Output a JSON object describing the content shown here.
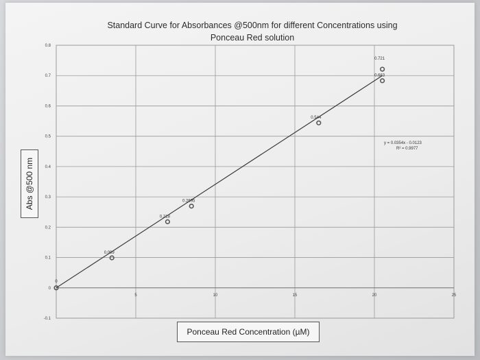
{
  "chart_data": {
    "type": "scatter",
    "title_line1": "Standard Curve for Absorbances @500nm for different Concentrations using",
    "title_line2": "Ponceau Red solution",
    "xlabel": "Ponceau Red Concentration (µM)",
    "ylabel": "Abs @500 nm",
    "xlim": [
      0,
      25
    ],
    "ylim": [
      -0.1,
      0.8
    ],
    "x_ticks": [
      5,
      10,
      15,
      20,
      25
    ],
    "x_tick_labels": [
      "5",
      "10",
      "15",
      "20",
      "25"
    ],
    "y_ticks": [
      -0.1,
      0,
      0.1,
      0.2,
      0.3,
      0.4,
      0.5,
      0.6,
      0.7,
      0.8
    ],
    "y_tick_labels": [
      "-0.1",
      "0",
      "0.1",
      "0.2",
      "0.3",
      "0.4",
      "0.5",
      "0.6",
      "0.7",
      "0.8"
    ],
    "grid": true,
    "points": [
      {
        "x": 0,
        "y": 0,
        "label": "0"
      },
      {
        "x": 3.5,
        "y": 0.099,
        "label": "0.099"
      },
      {
        "x": 7,
        "y": 0.218,
        "label": "0.218"
      },
      {
        "x": 8.5,
        "y": 0.2695,
        "label": "0.2695"
      },
      {
        "x": 16.5,
        "y": 0.544,
        "label": "0.544"
      },
      {
        "x": 20.5,
        "y": 0.683,
        "label": "0.683"
      },
      {
        "x": 20.5,
        "y": 0.721,
        "label": "0.721"
      }
    ],
    "trendline": {
      "x_range": [
        0,
        20.5
      ],
      "y_start": 0,
      "y_end": 0.7
    },
    "equation": "y = 0.0354x - 0.0123",
    "r_squared": "R² = 0.9977",
    "colors": {
      "line": "#3a3a3a",
      "marker": "#555555",
      "grid": "#9a9a9a"
    }
  }
}
